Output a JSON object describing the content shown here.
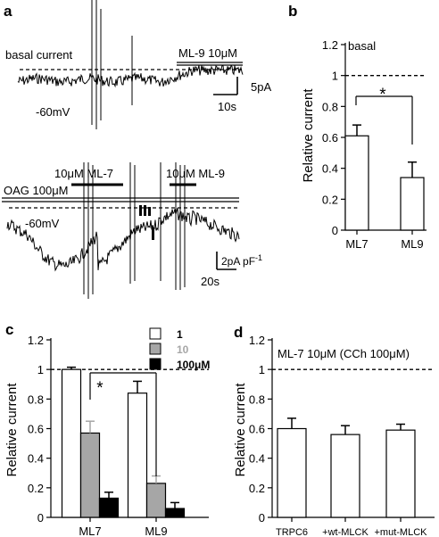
{
  "panels": {
    "a": {
      "letter": "a",
      "top": {
        "basal_label": "basal current",
        "drug_label": "ML-9 10μM",
        "voltage_label": "-60mV",
        "scale_y": "5pA",
        "scale_x": "10s"
      },
      "bottom": {
        "ml7_label": "10μM ML-7",
        "ml9_label": "10μM ML-9",
        "oag_label": "OAG 100μM",
        "voltage_label": "-60mV",
        "scale_y": "2pA pF",
        "scale_y_sup": "-1",
        "scale_x": "20s"
      }
    },
    "b": {
      "letter": "b",
      "annotation": "basal",
      "sig": "*"
    },
    "c": {
      "letter": "c",
      "sig": "*",
      "legend": [
        {
          "label": "1",
          "color": "#ffffff",
          "text_color": "#000000"
        },
        {
          "label": "10",
          "color": "#a6a6a6",
          "text_color": "#a6a6a6"
        },
        {
          "label": "100μM",
          "color": "#000000",
          "text_color": "#000000"
        }
      ]
    },
    "d": {
      "letter": "d",
      "annotation": "ML-7 10μM (CCh 100μM)"
    }
  },
  "chart_data": [
    {
      "panel": "b",
      "type": "bar",
      "categories": [
        "ML7",
        "ML9"
      ],
      "values": [
        0.61,
        0.34
      ],
      "errors": [
        0.07,
        0.1
      ],
      "ylabel": "Relative current",
      "ylim": [
        0,
        1.2
      ],
      "yticks": [
        0,
        0.2,
        0.4,
        0.6,
        0.8,
        1,
        1.2
      ],
      "reference_line": 1
    },
    {
      "panel": "c",
      "type": "bar",
      "categories": [
        "ML7",
        "ML9"
      ],
      "series": [
        {
          "name": "1",
          "color": "#ffffff",
          "values": [
            1.0,
            0.84
          ],
          "errors": [
            0.015,
            0.08
          ]
        },
        {
          "name": "10",
          "color": "#a6a6a6",
          "values": [
            0.57,
            0.23
          ],
          "errors": [
            0.08,
            0.05
          ]
        },
        {
          "name": "100μM",
          "color": "#000000",
          "values": [
            0.13,
            0.06
          ],
          "errors": [
            0.04,
            0.04
          ]
        }
      ],
      "ylabel": "Relative current",
      "ylim": [
        0,
        1.2
      ],
      "yticks": [
        0,
        0.2,
        0.4,
        0.6,
        0.8,
        1,
        1.2
      ],
      "reference_line": 1
    },
    {
      "panel": "d",
      "type": "bar",
      "categories": [
        "TRPC6",
        "+wt-MLCK",
        "+mut-MLCK"
      ],
      "values": [
        0.6,
        0.56,
        0.59
      ],
      "errors": [
        0.07,
        0.06,
        0.04
      ],
      "ylabel": "Relative current",
      "ylim": [
        0,
        1.2
      ],
      "yticks": [
        0,
        0.2,
        0.4,
        0.6,
        0.8,
        1,
        1.2
      ],
      "reference_line": 1
    }
  ]
}
